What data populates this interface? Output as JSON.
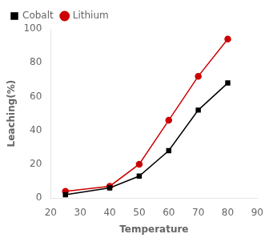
{
  "chart_data": {
    "type": "line",
    "x": [
      25,
      40,
      50,
      60,
      70,
      80
    ],
    "series": [
      {
        "name": "Cobalt",
        "color": "#000000",
        "marker": "square",
        "values": [
          2,
          6,
          13,
          28,
          52,
          68
        ]
      },
      {
        "name": "Lithium",
        "color": "#cc0000",
        "marker": "circle",
        "values": [
          4,
          7,
          20,
          46,
          72,
          94
        ]
      }
    ],
    "xlabel": "Temperature",
    "ylabel": "Leaching(%)",
    "xlim": [
      20,
      90
    ],
    "ylim": [
      0,
      100
    ],
    "xticks": [
      20,
      30,
      40,
      50,
      60,
      70,
      80,
      90
    ],
    "yticks": [
      0,
      20,
      40,
      60,
      80,
      100
    ],
    "legend": "upper left",
    "grid": false
  }
}
